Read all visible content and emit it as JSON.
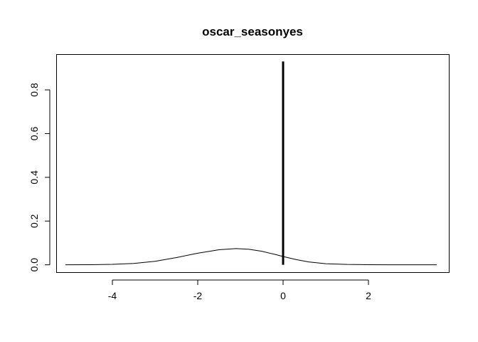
{
  "chart_data": {
    "type": "line",
    "title": "oscar_seasonyes",
    "xlabel": "",
    "ylabel": "",
    "xlim": [
      -5.3,
      3.9
    ],
    "ylim": [
      -0.037,
      0.96
    ],
    "x_ticks": [
      -4,
      -2,
      0,
      2
    ],
    "x_tick_labels": [
      "-4",
      "-2",
      "0",
      "2"
    ],
    "y_ticks": [
      0.0,
      0.2,
      0.4,
      0.6,
      0.8
    ],
    "y_tick_labels": [
      "0.0",
      "0.2",
      "0.4",
      "0.6",
      "0.8"
    ],
    "grid": false,
    "series": [
      {
        "style": "thin-line",
        "color": "#000000",
        "x": [
          -5.1,
          -4.5,
          -4.0,
          -3.5,
          -3.0,
          -2.5,
          -2.0,
          -1.5,
          -1.1,
          -0.8,
          -0.5,
          -0.2,
          0.0,
          0.3,
          0.6,
          1.0,
          1.5,
          2.0,
          2.5,
          3.0,
          3.6
        ],
        "y": [
          0.0,
          0.0005,
          0.002,
          0.006,
          0.016,
          0.033,
          0.053,
          0.069,
          0.074,
          0.071,
          0.062,
          0.048,
          0.038,
          0.024,
          0.013,
          0.005,
          0.0015,
          0.0004,
          0.0001,
          0.0,
          0.0
        ]
      },
      {
        "style": "thick-line",
        "color": "#000000",
        "x": [
          0.0,
          0.0
        ],
        "y": [
          0.0,
          0.93
        ]
      }
    ]
  }
}
